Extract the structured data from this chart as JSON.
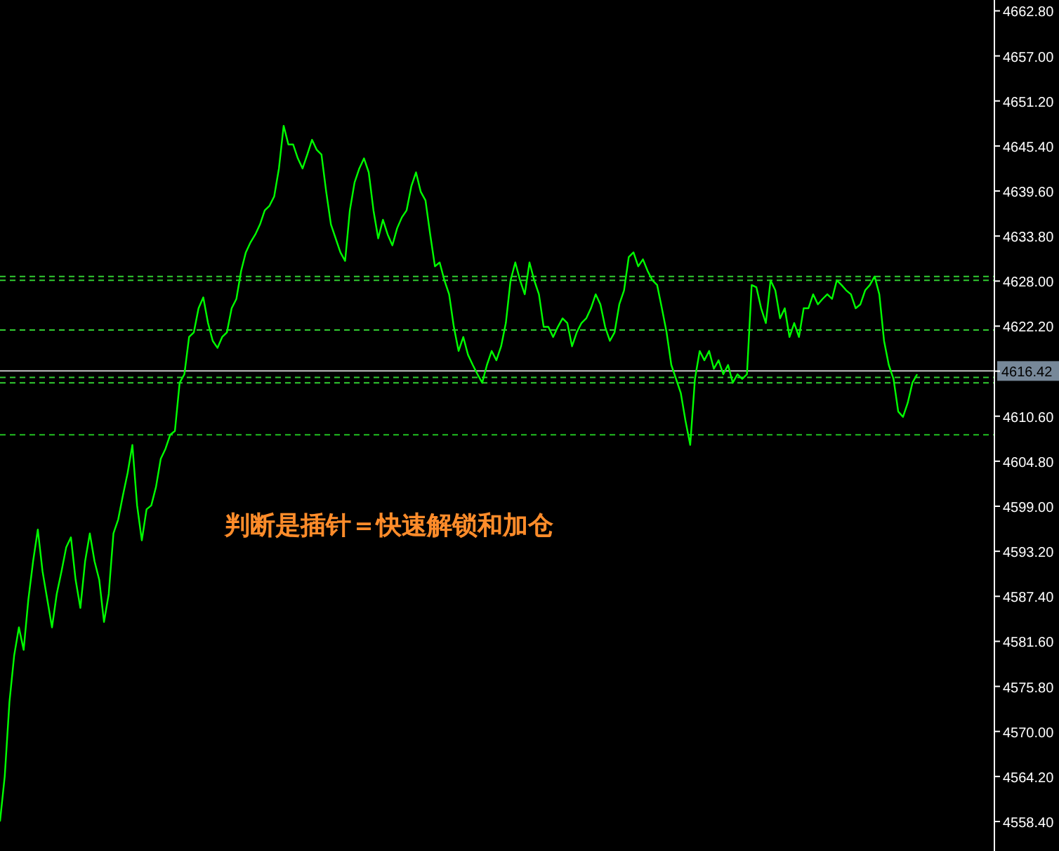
{
  "chart_data": {
    "type": "line",
    "categories": [
      null,
      null,
      null,
      null,
      null,
      null,
      null,
      null,
      null,
      null,
      null,
      null,
      null,
      null,
      null,
      null,
      null,
      null,
      null,
      null,
      null,
      null,
      null,
      null,
      null,
      null,
      null,
      null,
      null,
      null,
      null,
      null,
      null,
      null,
      null,
      null,
      null,
      null,
      null,
      null,
      null,
      null,
      null,
      null,
      null,
      null,
      null,
      null,
      null,
      null,
      null,
      null,
      null,
      null,
      null,
      null,
      null,
      null,
      null,
      null,
      null,
      null,
      null,
      null,
      null,
      null,
      null,
      null,
      null,
      null,
      null,
      null,
      null,
      null,
      null,
      null,
      null,
      null,
      null,
      null,
      null,
      null,
      null,
      null,
      null,
      null,
      null,
      null,
      null,
      null,
      null,
      null,
      null,
      null,
      null,
      null,
      null,
      null,
      null,
      null,
      null,
      null,
      null,
      null,
      null,
      null,
      null,
      null,
      null,
      null,
      null,
      null,
      null,
      null,
      null,
      null,
      null,
      null,
      null,
      null,
      null,
      null,
      null,
      null,
      null,
      null,
      null,
      null,
      null,
      null,
      null,
      null,
      null,
      null,
      null,
      null,
      null,
      null,
      null,
      null,
      null,
      null,
      null,
      null,
      null,
      null,
      null,
      null,
      null,
      null,
      null,
      null,
      null,
      null,
      null,
      null,
      null,
      null,
      null,
      null,
      null,
      null,
      null,
      null,
      null,
      null,
      null,
      null,
      null,
      null,
      null,
      null,
      null,
      null,
      null,
      null,
      null,
      null,
      null,
      null,
      null,
      null,
      null,
      null,
      null,
      null,
      null,
      null,
      null,
      null,
      null,
      null,
      null,
      null,
      null
    ],
    "series": [
      {
        "color": "#00ff00",
        "values": [
          4558.4,
          4564.2,
          4573.8,
          4579.8,
          4583.4,
          4580.5,
          4587.0,
          4591.9,
          4596.0,
          4590.6,
          4587.0,
          4583.4,
          4587.7,
          4590.6,
          4593.7,
          4595.0,
          4589.5,
          4585.9,
          4591.9,
          4595.5,
          4591.9,
          4589.5,
          4584.1,
          4587.7,
          4595.5,
          4597.3,
          4600.4,
          4603.3,
          4606.9,
          4599.1,
          4594.6,
          4598.6,
          4599.1,
          4601.5,
          4605.1,
          4606.4,
          4608.2,
          4608.7,
          4614.9,
          4616.0,
          4620.8,
          4621.4,
          4624.5,
          4625.9,
          4622.6,
          4620.3,
          4619.4,
          4620.8,
          4621.4,
          4624.5,
          4625.7,
          4629.3,
          4631.7,
          4633.0,
          4634.0,
          4635.3,
          4637.1,
          4637.7,
          4638.9,
          4642.5,
          4648.0,
          4645.6,
          4645.6,
          4643.8,
          4642.5,
          4644.3,
          4646.2,
          4644.9,
          4644.3,
          4639.5,
          4635.3,
          4633.5,
          4631.7,
          4630.6,
          4637.1,
          4640.7,
          4642.5,
          4643.8,
          4642.0,
          4637.1,
          4633.5,
          4635.9,
          4634.0,
          4632.6,
          4634.8,
          4636.2,
          4637.1,
          4640.2,
          4642.0,
          4639.5,
          4638.4,
          4634.0,
          4629.9,
          4630.4,
          4628.1,
          4626.3,
          4622.1,
          4619.0,
          4620.8,
          4618.5,
          4617.2,
          4616.0,
          4614.9,
          4617.2,
          4619.0,
          4617.8,
          4619.6,
          4622.6,
          4628.1,
          4630.4,
          4628.1,
          4626.3,
          4630.4,
          4628.1,
          4626.3,
          4622.1,
          4622.1,
          4620.8,
          4622.1,
          4623.2,
          4622.6,
          4619.6,
          4621.4,
          4622.6,
          4623.2,
          4624.5,
          4626.3,
          4625.0,
          4622.1,
          4620.3,
          4621.4,
          4625.0,
          4626.8,
          4631.1,
          4631.7,
          4629.9,
          4630.8,
          4629.3,
          4628.1,
          4627.5,
          4624.5,
          4621.4,
          4617.2,
          4615.4,
          4613.6,
          4610.0,
          4606.9,
          4615.4,
          4619.0,
          4617.8,
          4619.0,
          4616.7,
          4617.8,
          4616.0,
          4617.2,
          4614.9,
          4616.0,
          4615.4,
          4616.0,
          4627.5,
          4627.2,
          4624.5,
          4622.6,
          4628.1,
          4626.8,
          4623.2,
          4624.5,
          4620.8,
          4622.6,
          4620.8,
          4624.5,
          4624.5,
          4626.3,
          4625.0,
          4625.7,
          4626.3,
          4625.7,
          4628.1,
          4627.5,
          4626.8,
          4626.3,
          4624.5,
          4625.0,
          4626.8,
          4627.5,
          4628.6,
          4626.3,
          4620.3,
          4617.2,
          4615.4,
          4611.2,
          4610.5,
          4612.3,
          4614.9,
          4616.0
        ]
      }
    ],
    "ylim": [
      4554.6,
      4664.2
    ],
    "yticks": [
      {
        "value": 4558.4,
        "label": "4558.40"
      },
      {
        "value": 4564.2,
        "label": "4564.20"
      },
      {
        "value": 4570.0,
        "label": "4570.00"
      },
      {
        "value": 4575.8,
        "label": "4575.80"
      },
      {
        "value": 4581.6,
        "label": "4581.60"
      },
      {
        "value": 4587.4,
        "label": "4587.40"
      },
      {
        "value": 4593.2,
        "label": "4593.20"
      },
      {
        "value": 4599.0,
        "label": "4599.00"
      },
      {
        "value": 4604.8,
        "label": "4604.80"
      },
      {
        "value": 4610.6,
        "label": "4610.60"
      },
      {
        "value": 4616.4,
        "label": null
      },
      {
        "value": 4622.2,
        "label": "4622.20"
      },
      {
        "value": 4628.0,
        "label": "4628.00"
      },
      {
        "value": 4633.8,
        "label": "4633.80"
      },
      {
        "value": 4639.6,
        "label": "4639.60"
      },
      {
        "value": 4645.4,
        "label": "4645.40"
      },
      {
        "value": 4651.2,
        "label": "4651.20"
      },
      {
        "value": 4657.0,
        "label": "4657.00"
      },
      {
        "value": 4662.8,
        "label": "4662.80"
      }
    ],
    "tick_labels": "y",
    "grid": false,
    "marker": "none",
    "line_style": "solid",
    "ref_lines": [
      {
        "axis": "y",
        "value": 4628.6,
        "color": "#32cd32",
        "line_style": "dashed"
      },
      {
        "axis": "y",
        "value": 4628.1,
        "color": "#32cd32",
        "line_style": "dashed"
      },
      {
        "axis": "y",
        "value": 4621.7,
        "color": "#32cd32",
        "line_style": "dashed"
      },
      {
        "axis": "y",
        "value": 4615.6,
        "color": "#32cd32",
        "line_style": "dashed"
      },
      {
        "axis": "y",
        "value": 4614.9,
        "color": "#32cd32",
        "line_style": "dashed"
      },
      {
        "axis": "y",
        "value": 4608.2,
        "color": "#20c020",
        "line_style": "dashed"
      },
      {
        "axis": "y",
        "value": 4616.42,
        "label": "4616.42",
        "color": "#c0c0c0",
        "line_style": "solid"
      }
    ],
    "annotations": [
      "判断是插针＝快速解锁和加仓"
    ]
  }
}
